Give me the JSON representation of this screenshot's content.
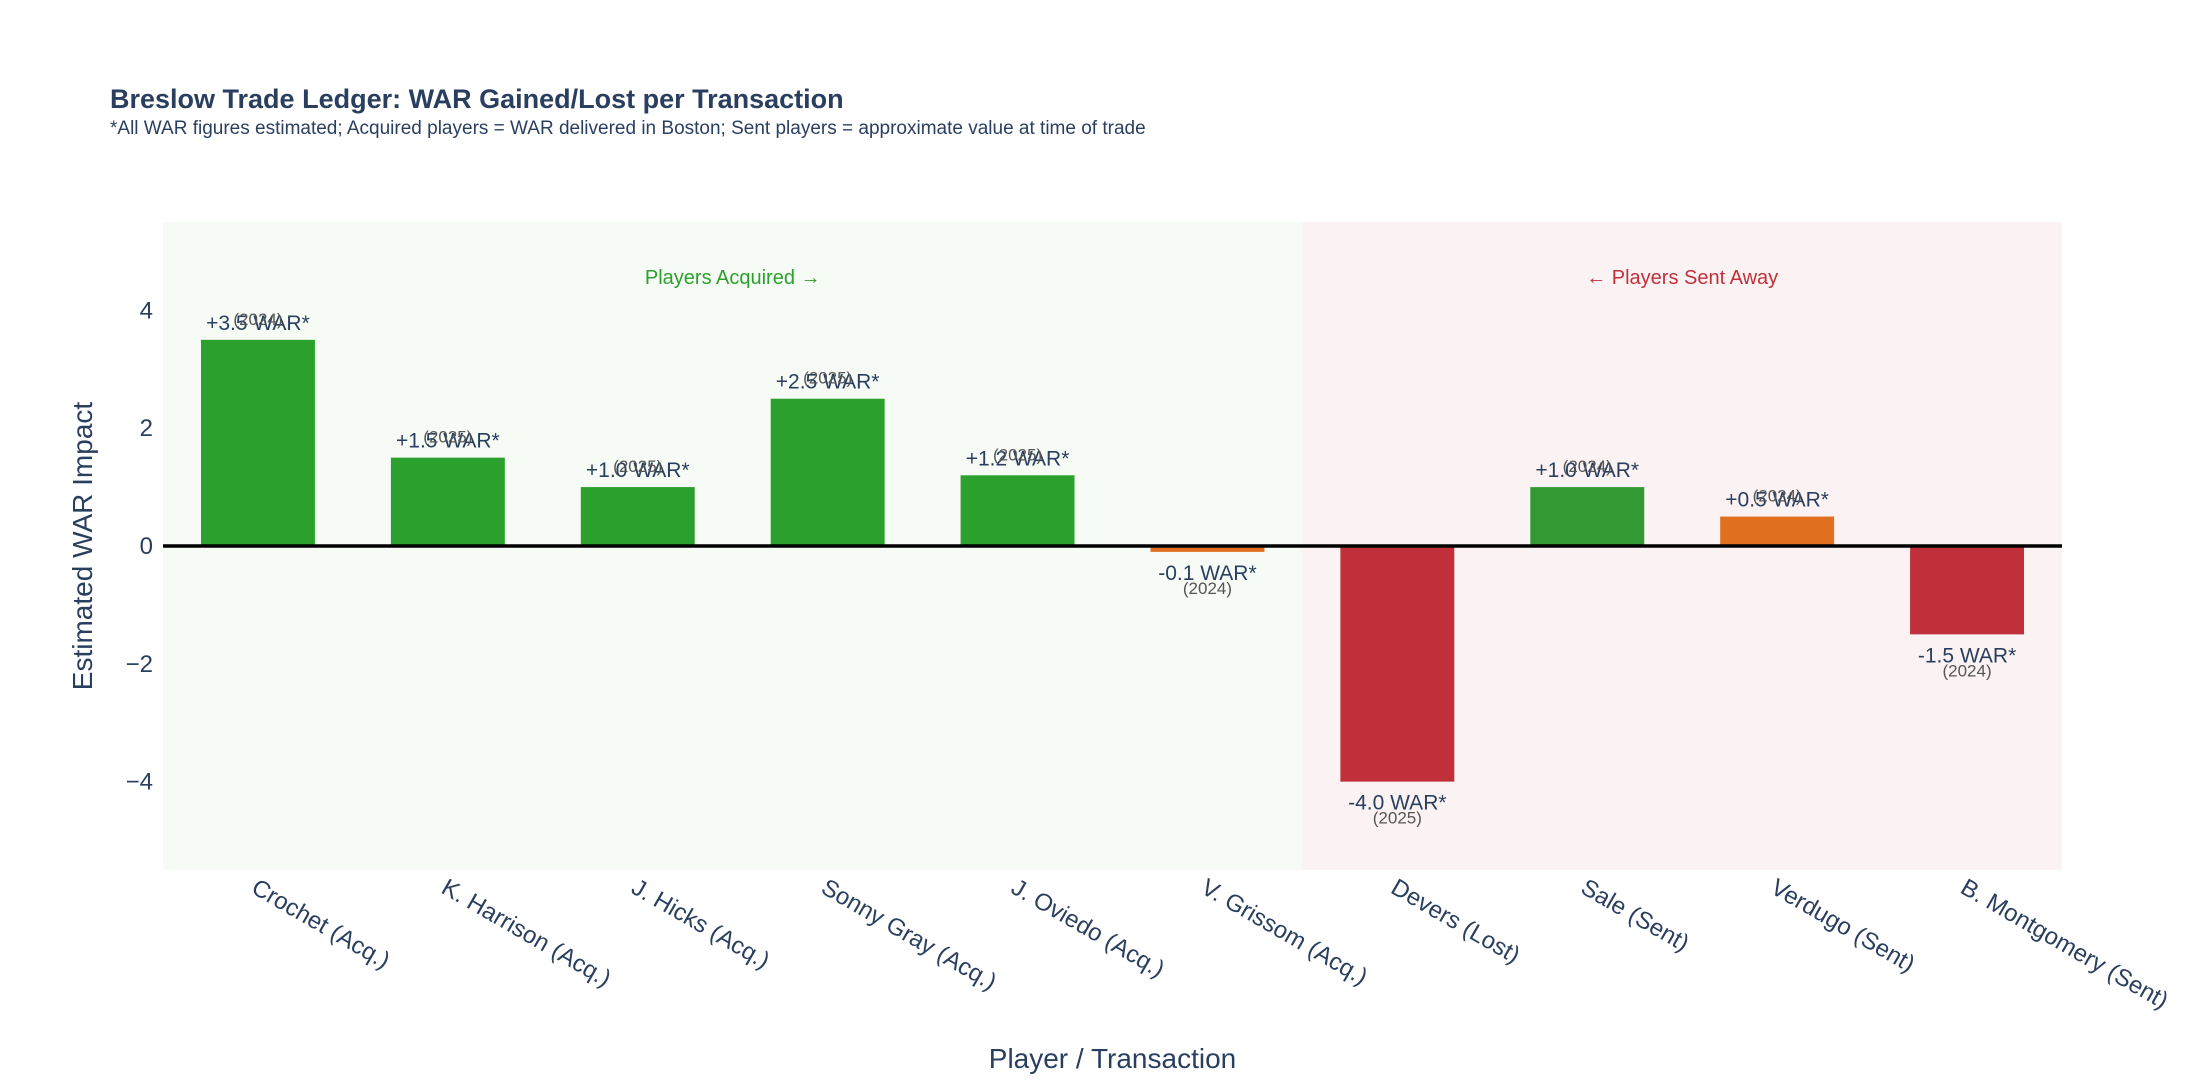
{
  "chart_data": {
    "type": "bar",
    "title": "Breslow Trade Ledger: WAR Gained/Lost per Transaction",
    "subtitle": "*All WAR figures estimated; Acquired players = WAR delivered in Boston; Sent players = approximate value at time of trade",
    "xlabel": "Player / Transaction",
    "ylabel": "Estimated WAR Impact",
    "ylim": [
      -5.5,
      5.5
    ],
    "yticks": [
      4,
      2,
      0,
      -2,
      -4
    ],
    "ytick_labels": [
      "4",
      "2",
      "0",
      "−2",
      "−4"
    ],
    "grid": false,
    "categories": [
      "Crochet (Acq.)",
      "K. Harrison (Acq.)",
      "J. Hicks (Acq.)",
      "Sonny Gray (Acq.)",
      "J. Oviedo (Acq.)",
      "V. Grissom (Acq.)",
      "Devers (Lost)",
      "Sale (Sent)",
      "Verdugo (Sent)",
      "B. Montgomery (Sent)"
    ],
    "values": [
      3.5,
      1.5,
      1.0,
      2.5,
      1.2,
      -0.1,
      -4.0,
      1.0,
      0.5,
      -1.5
    ],
    "value_labels": [
      "+3.5 WAR*",
      "+1.5 WAR*",
      "+1.0 WAR*",
      "+2.5 WAR*",
      "+1.2 WAR*",
      "-0.1 WAR*",
      "-4.0 WAR*",
      "+1.0 WAR*",
      "+0.5 WAR*",
      "-1.5 WAR*"
    ],
    "years": [
      "(2024)",
      "(2025)",
      "(2025)",
      "(2025)",
      "(2025)",
      "(2024)",
      "(2025)",
      "(2024)",
      "(2024)",
      "(2024)"
    ],
    "bar_colors": [
      "#2ca02c",
      "#2ca02c",
      "#2ca02c",
      "#2ca02c",
      "#2ca02c",
      "#e07020",
      "#c0303a",
      "#339933",
      "#e07020",
      "#c0303a"
    ],
    "regions": [
      {
        "label": "Players Acquired →",
        "from_category": 0,
        "to_category": 5,
        "fill": "#f6fbf6",
        "text_color": "#2ca02c"
      },
      {
        "label": "← Players Sent Away",
        "from_category": 6,
        "to_category": 9,
        "fill": "#fbf3f3",
        "text_color": "#c0303a"
      }
    ],
    "zero_line_color": "#000000"
  }
}
